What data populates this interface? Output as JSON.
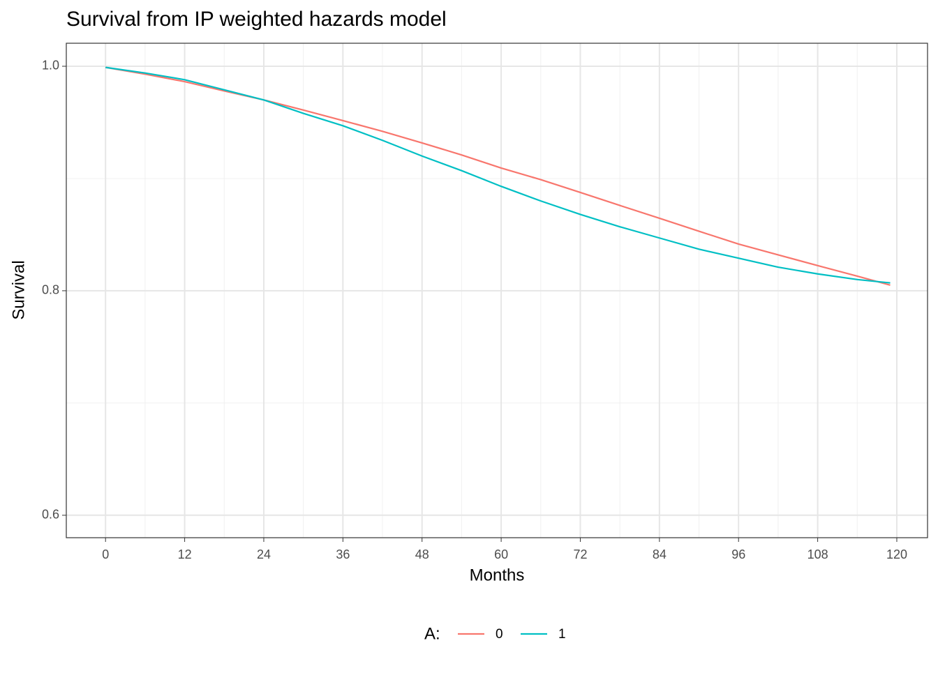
{
  "chart_data": {
    "type": "line",
    "title": "Survival from IP weighted hazards model",
    "x_label": "Months",
    "y_label": "Survival",
    "x": [
      0,
      6,
      12,
      18,
      24,
      30,
      36,
      42,
      48,
      54,
      60,
      66,
      72,
      78,
      84,
      90,
      96,
      102,
      108,
      114,
      119
    ],
    "series": [
      {
        "name": "0",
        "color": "#f8766d",
        "values": [
          0.999,
          0.993,
          0.9863,
          0.978,
          0.97,
          0.961,
          0.9516,
          0.942,
          0.9317,
          0.921,
          0.9093,
          0.899,
          0.8876,
          0.876,
          0.8646,
          0.853,
          0.8416,
          0.832,
          0.8224,
          0.813,
          0.805
        ]
      },
      {
        "name": "1",
        "color": "#00bfc4",
        "values": [
          0.999,
          0.994,
          0.988,
          0.979,
          0.97,
          0.958,
          0.947,
          0.934,
          0.92,
          0.907,
          0.893,
          0.88,
          0.868,
          0.857,
          0.847,
          0.837,
          0.829,
          0.821,
          0.815,
          0.81,
          0.807
        ]
      }
    ],
    "legend_title": "A:",
    "legend_position": "bottom",
    "xlim": [
      -5.95,
      124.66
    ],
    "ylim": [
      0.58,
      1.0205
    ],
    "xticks": [
      0,
      12,
      24,
      36,
      48,
      60,
      72,
      84,
      96,
      108,
      120
    ],
    "yticks": [
      {
        "value": 0.6,
        "label": "0.6"
      },
      {
        "value": 0.8,
        "label": "0.8"
      },
      {
        "value": 1,
        "label": "1.0"
      }
    ],
    "x_minor_ticks": [
      6,
      18,
      30,
      42,
      54,
      66,
      78,
      90,
      102,
      114
    ],
    "y_minor_ticks": [
      0.7,
      0.9
    ],
    "grid": true
  }
}
